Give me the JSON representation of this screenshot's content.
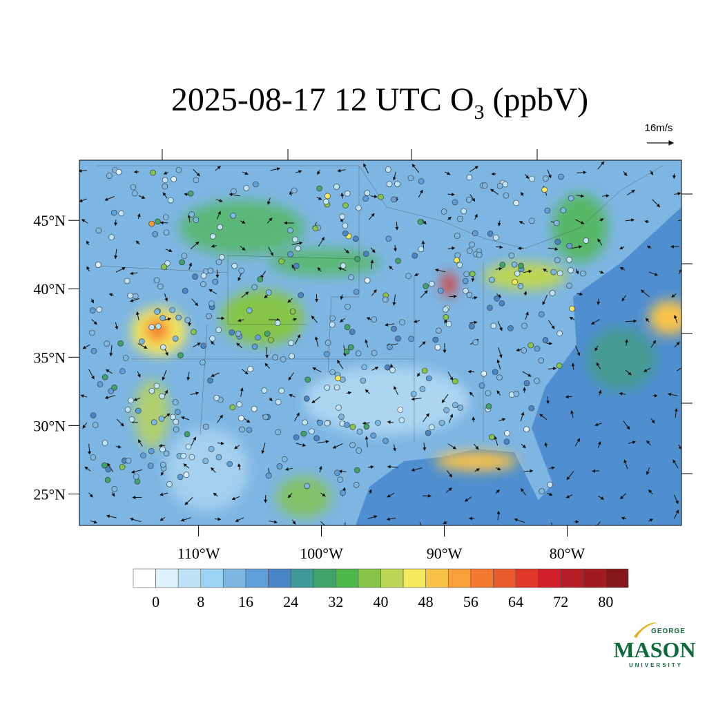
{
  "title": {
    "main": "2025-08-17 12 UTC O",
    "subscript": "3",
    "suffix": "(ppbV)"
  },
  "wind_reference": "16m/s",
  "map": {
    "lat_lim": [
      22.7,
      49.4
    ],
    "lon_lim": [
      -119.7,
      -70.7
    ],
    "lat_ticks": [
      {
        "value": 45,
        "label": "45°N"
      },
      {
        "value": 40,
        "label": "40°N"
      },
      {
        "value": 35,
        "label": "35°N"
      },
      {
        "value": 30,
        "label": "30°N"
      },
      {
        "value": 25,
        "label": "25°N"
      }
    ],
    "lon_ticks": [
      {
        "value": -110,
        "label": "110°W"
      },
      {
        "value": -100,
        "label": "100°W"
      },
      {
        "value": -90,
        "label": "90°W"
      },
      {
        "value": -80,
        "label": "80°W"
      }
    ]
  },
  "colorbar": {
    "lim": [
      -4,
      84
    ],
    "ticks": [
      0,
      8,
      16,
      24,
      32,
      40,
      48,
      56,
      64,
      72,
      80
    ],
    "colors": [
      "#ffffff",
      "#ddf1fb",
      "#bfe3f6",
      "#9dd3f2",
      "#7db8e3",
      "#5f9fd9",
      "#4a86c6",
      "#3f9999",
      "#3fa36a",
      "#4cb849",
      "#86c54a",
      "#bdd653",
      "#f5e85a",
      "#f9c24a",
      "#f9a03a",
      "#f47a2f",
      "#ea5a2d",
      "#e0392a",
      "#cf1f2a",
      "#b61c25",
      "#a01a20",
      "#85161a"
    ]
  },
  "logo": {
    "top": "GEORGE",
    "name": "MASON",
    "bottom": "UNIVERSITY"
  }
}
